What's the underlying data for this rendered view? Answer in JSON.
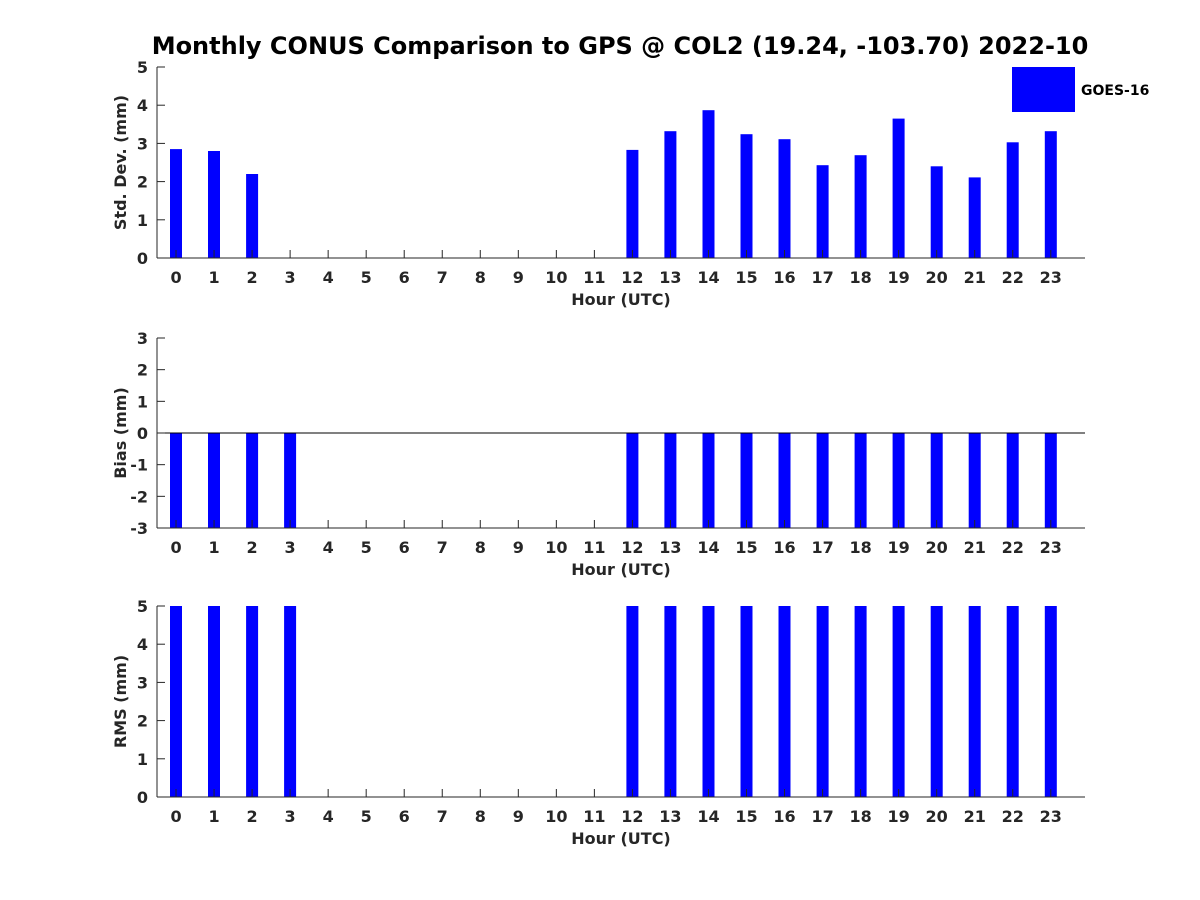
{
  "chart_data": {
    "title": "Monthly CONUS Comparison to GPS @ COL2 (19.24, -103.70) 2022-10",
    "legend": {
      "label": "GOES-16",
      "placement": "top-right",
      "color": "#0000ff"
    },
    "bar_color": "#0000ff",
    "panels": [
      {
        "type": "bar",
        "name": "std-dev",
        "xlabel": "Hour (UTC)",
        "ylabel": "Std. Dev. (mm)",
        "ylim": [
          0,
          5
        ],
        "yticks": [
          0,
          1,
          2,
          3,
          4,
          5
        ],
        "categories": [
          "0",
          "1",
          "2",
          "3",
          "4",
          "5",
          "6",
          "7",
          "8",
          "9",
          "10",
          "11",
          "12",
          "13",
          "14",
          "15",
          "16",
          "17",
          "18",
          "19",
          "20",
          "21",
          "22",
          "23"
        ],
        "series": [
          {
            "name": "GOES-16",
            "values": [
              2.85,
              2.8,
              2.2,
              null,
              null,
              null,
              null,
              null,
              null,
              null,
              null,
              null,
              2.83,
              3.32,
              3.87,
              3.24,
              3.11,
              2.43,
              2.69,
              3.65,
              2.4,
              2.11,
              3.03,
              3.32
            ]
          }
        ]
      },
      {
        "type": "bar",
        "name": "bias",
        "xlabel": "Hour (UTC)",
        "ylabel": "Bias (mm)",
        "ylim": [
          -3,
          3
        ],
        "yticks": [
          -3,
          -2,
          -1,
          0,
          1,
          2,
          3
        ],
        "zero_line": true,
        "categories": [
          "0",
          "1",
          "2",
          "3",
          "4",
          "5",
          "6",
          "7",
          "8",
          "9",
          "10",
          "11",
          "12",
          "13",
          "14",
          "15",
          "16",
          "17",
          "18",
          "19",
          "20",
          "21",
          "22",
          "23"
        ],
        "series": [
          {
            "name": "GOES-16",
            "values": [
              -3,
              -3,
              -3,
              -3,
              null,
              null,
              null,
              null,
              null,
              null,
              null,
              null,
              -3,
              -3,
              -3,
              -3,
              -3,
              -3,
              -3,
              -3,
              -3,
              -3,
              -3,
              -3
            ]
          }
        ]
      },
      {
        "type": "bar",
        "name": "rms",
        "xlabel": "Hour (UTC)",
        "ylabel": "RMS (mm)",
        "ylim": [
          0,
          5
        ],
        "yticks": [
          0,
          1,
          2,
          3,
          4,
          5
        ],
        "categories": [
          "0",
          "1",
          "2",
          "3",
          "4",
          "5",
          "6",
          "7",
          "8",
          "9",
          "10",
          "11",
          "12",
          "13",
          "14",
          "15",
          "16",
          "17",
          "18",
          "19",
          "20",
          "21",
          "22",
          "23"
        ],
        "series": [
          {
            "name": "GOES-16",
            "values": [
              5,
              5,
              5,
              5,
              null,
              null,
              null,
              null,
              null,
              null,
              null,
              null,
              5,
              5,
              5,
              5,
              5,
              5,
              5,
              5,
              5,
              5,
              5,
              5
            ]
          }
        ]
      }
    ]
  }
}
